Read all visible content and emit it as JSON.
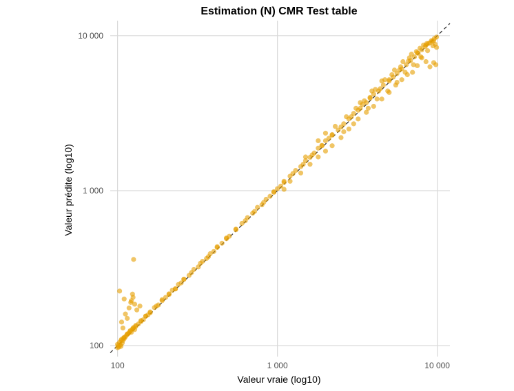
{
  "chart_data": {
    "type": "scatter",
    "title": "Estimation (N) CMR Test table",
    "xlabel": "Valeur vraie (log10)",
    "ylabel": "Valeur prédite (log10)",
    "xscale": "log10",
    "yscale": "log10",
    "xlim": [
      90,
      12000
    ],
    "ylim": [
      85,
      12500
    ],
    "xticks": [
      {
        "value": 100,
        "label": "100"
      },
      {
        "value": 1000,
        "label": "1 000"
      },
      {
        "value": 10000,
        "label": "10 000"
      }
    ],
    "yticks": [
      {
        "value": 100,
        "label": "100"
      },
      {
        "value": 1000,
        "label": "1 000"
      },
      {
        "value": 10000,
        "label": "10 000"
      }
    ],
    "grid": true,
    "reference_line": "y = x (dashed)",
    "point_color": "#E69F00",
    "line_color": "#333333",
    "grid_color": "#d9d9d9",
    "series": [
      {
        "x": [
          100,
          101,
          102,
          103,
          104,
          105,
          106,
          107,
          108,
          109,
          110,
          112,
          114,
          116,
          118,
          120,
          122,
          124,
          126,
          128,
          130,
          135,
          140,
          145,
          150,
          155,
          160,
          170,
          180,
          190,
          200,
          210,
          220,
          230,
          240,
          250,
          260,
          280,
          300,
          320,
          340,
          360,
          380,
          400,
          420,
          450,
          480,
          500,
          550,
          600,
          650,
          700,
          750,
          800,
          850,
          900,
          950,
          1000,
          1050,
          1100,
          1200,
          1300,
          1400,
          1500,
          1600,
          1700,
          1800,
          1900,
          2000,
          2100,
          2200,
          2400,
          2600,
          2800,
          3000,
          3200,
          3400,
          3600,
          3800,
          4000,
          4300,
          4600,
          5000,
          5300,
          5600,
          6000,
          6400,
          6800,
          7200,
          7600,
          8000,
          8400,
          8800,
          9200,
          9600,
          9900,
          100,
          105,
          110,
          115,
          120,
          125,
          130,
          140,
          150,
          160,
          175,
          190,
          210,
          230,
          260,
          290,
          330,
          370,
          420,
          480,
          550,
          630,
          720,
          820,
          950,
          1100,
          1250,
          1450,
          1650,
          1900,
          2200,
          2500,
          2900,
          3300,
          3800,
          4400,
          5000,
          5800,
          6600,
          7500,
          8500,
          9500,
          9800,
          9500,
          9000,
          8500,
          8000,
          7500,
          7000,
          6500,
          6000,
          5500,
          5000,
          4500,
          4000,
          3600,
          3200,
          2800,
          2500,
          2200,
          2000,
          1800,
          1600,
          1400,
          1200,
          1100,
          112,
          118,
          122,
          125,
          128,
          115,
          108,
          106,
          124,
          121,
          126,
          103,
          110,
          132,
          138,
          1500,
          1800,
          2000,
          2300,
          2700,
          3100,
          3500,
          4100,
          4700,
          5200,
          5900,
          6700,
          7400,
          8200,
          9000,
          9700,
          2600,
          3000,
          3700,
          4200,
          4900,
          5600,
          6300,
          7100,
          7900,
          8700,
          9400,
          3300,
          3900,
          4500,
          5400,
          6100,
          6900,
          7800,
          8600,
          9300,
          9900
        ],
        "y": [
          102,
          100,
          98,
          105,
          101,
          99,
          110,
          104,
          108,
          112,
          111,
          114,
          117,
          119,
          121,
          125,
          122,
          128,
          131,
          127,
          133,
          138,
          145,
          147,
          155,
          158,
          165,
          176,
          183,
          198,
          205,
          214,
          228,
          233,
          248,
          254,
          268,
          284,
          310,
          322,
          350,
          365,
          392,
          405,
          435,
          458,
          495,
          508,
          565,
          615,
          670,
          715,
          780,
          810,
          880,
          920,
          985,
          1030,
          1070,
          1150,
          1240,
          1350,
          1430,
          1560,
          1640,
          1750,
          1880,
          1950,
          2100,
          2180,
          2300,
          2460,
          2700,
          2900,
          3150,
          3300,
          3600,
          3700,
          4000,
          4200,
          4400,
          4800,
          5100,
          5400,
          5700,
          6100,
          6500,
          6900,
          7300,
          7700,
          8100,
          8500,
          8900,
          9300,
          9600,
          9800,
          97,
          108,
          113,
          119,
          124,
          129,
          135,
          143,
          155,
          163,
          180,
          195,
          216,
          232,
          268,
          296,
          340,
          375,
          430,
          490,
          560,
          640,
          735,
          840,
          975,
          1130,
          1290,
          1480,
          1700,
          1960,
          2280,
          2580,
          3000,
          3400,
          3950,
          4550,
          5200,
          6000,
          6850,
          7750,
          8700,
          9300,
          6500,
          6700,
          6300,
          6800,
          7200,
          6400,
          5800,
          5600,
          5200,
          4800,
          4300,
          3900,
          3500,
          3200,
          2900,
          2500,
          2200,
          1950,
          1800,
          1650,
          1480,
          1300,
          1150,
          1020,
          160,
          175,
          195,
          205,
          185,
          150,
          130,
          142,
          215,
          190,
          360,
          225,
          200,
          170,
          180,
          1650,
          2100,
          2350,
          2600,
          3000,
          3400,
          3800,
          4500,
          5200,
          5600,
          6300,
          7200,
          7900,
          8700,
          9000,
          8800,
          2400,
          2700,
          3400,
          3900,
          4400,
          5000,
          5800,
          6500,
          7300,
          8000,
          8600,
          3700,
          4400,
          5100,
          6000,
          6800,
          7600,
          8300,
          8900,
          9200,
          8400
        ]
      }
    ]
  }
}
